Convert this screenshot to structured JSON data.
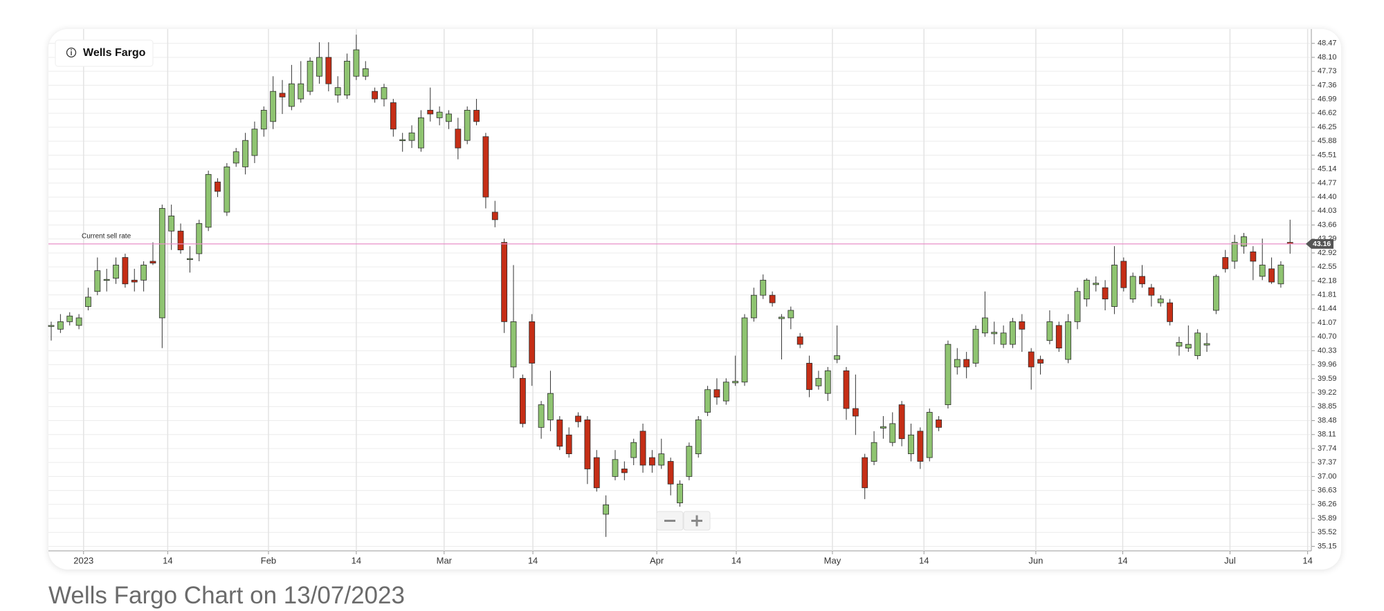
{
  "chart_data": {
    "type": "candlestick",
    "legend_label": "Wells Fargo",
    "caption": "Wells Fargo Chart on 13/07/2023",
    "annotation": "Current sell rate",
    "up_color": "#8fc471",
    "down_color": "#c52e16",
    "line_color": "#e98fc8",
    "grid": true,
    "xlim": [
      -0.3,
      136.3
    ],
    "ylim": [
      35.03,
      48.85
    ],
    "xticks": [
      {
        "value": 3.5,
        "label": "2023"
      },
      {
        "value": 12.6,
        "label": "14"
      },
      {
        "value": 23.5,
        "label": "Feb"
      },
      {
        "value": 33,
        "label": "14"
      },
      {
        "value": 42.5,
        "label": "Mar"
      },
      {
        "value": 52.1,
        "label": "14"
      },
      {
        "value": 65.5,
        "label": "Apr"
      },
      {
        "value": 74.1,
        "label": "14"
      },
      {
        "value": 84.5,
        "label": "May"
      },
      {
        "value": 94.4,
        "label": "14"
      },
      {
        "value": 106.5,
        "label": "Jun"
      },
      {
        "value": 115.9,
        "label": "14"
      },
      {
        "value": 127.5,
        "label": "Jul"
      },
      {
        "value": 135.9,
        "label": "14"
      }
    ],
    "yticks": [
      35.15,
      35.52,
      35.89,
      36.26,
      36.63,
      {
        "value": 37,
        "label": "37.00"
      },
      37.37,
      37.74,
      38.11,
      38.48,
      38.85,
      39.22,
      39.59,
      39.96,
      40.33,
      {
        "value": 40.7,
        "label": "40.70"
      },
      41.07,
      41.44,
      41.81,
      42.18,
      42.55,
      42.92,
      43.29,
      43.66,
      44.03,
      {
        "value": 44.4,
        "label": "44.40"
      },
      44.77,
      45.14,
      45.51,
      45.88,
      46.25,
      46.62,
      46.99,
      47.36,
      47.73,
      {
        "value": 48.1,
        "label": "48.10"
      },
      48.47
    ],
    "open": [
      40.98,
      40.9,
      41.1,
      41.0,
      41.5,
      41.9,
      42.2,
      42.25,
      42.8,
      42.2,
      42.2,
      42.7,
      41.2,
      43.5,
      43.5,
      42.75,
      42.9,
      43.6,
      44.8,
      44.0,
      45.3,
      45.2,
      45.5,
      46.2,
      46.4,
      47.15,
      46.8,
      47.0,
      47.2,
      47.6,
      48.1,
      47.1,
      47.1,
      47.6,
      47.6,
      47.2,
      47.0,
      46.9,
      45.9,
      45.9,
      45.7,
      46.7,
      46.5,
      46.4,
      46.2,
      45.9,
      46.7,
      46.0,
      44.0,
      43.2,
      39.9,
      39.6,
      41.1,
      38.3,
      38.5,
      38.5,
      38.1,
      38.6,
      38.5,
      37.5,
      36.0,
      37.0,
      37.2,
      37.5,
      38.2,
      37.5,
      37.3,
      37.4,
      36.3,
      37.0,
      37.6,
      38.7,
      39.3,
      39.0,
      39.48,
      39.5,
      41.2,
      41.8,
      41.8,
      41.18,
      41.2,
      40.7,
      40.0,
      39.4,
      39.2,
      40.1,
      39.8,
      38.8,
      37.5,
      37.4,
      38.28,
      37.9,
      38.9,
      37.6,
      38.2,
      37.5,
      38.5,
      38.9,
      39.9,
      40.1,
      40.0,
      40.8,
      40.78,
      40.5,
      40.5,
      41.1,
      40.3,
      40.1,
      40.6,
      41.0,
      40.1,
      41.1,
      41.7,
      42.08,
      42.0,
      41.5,
      42.7,
      41.7,
      42.3,
      42.0,
      41.6,
      41.6,
      40.45,
      40.4,
      40.2,
      40.48,
      41.4,
      42.8,
      42.7,
      43.1,
      42.95,
      42.3,
      42.5,
      42.1,
      43.2
    ],
    "high": [
      41.1,
      41.3,
      41.35,
      41.3,
      42.0,
      42.8,
      42.5,
      42.8,
      42.9,
      42.5,
      42.7,
      43.2,
      44.2,
      44.2,
      43.7,
      43.1,
      43.8,
      45.1,
      44.9,
      45.3,
      45.7,
      46.1,
      46.4,
      46.8,
      47.6,
      47.5,
      47.9,
      48.0,
      48.1,
      48.5,
      48.5,
      47.6,
      48.2,
      48.7,
      48.0,
      47.3,
      47.4,
      47.0,
      46.1,
      46.3,
      46.7,
      47.3,
      46.8,
      46.7,
      46.5,
      46.8,
      47.0,
      46.1,
      44.3,
      43.3,
      42.6,
      39.7,
      41.3,
      39.0,
      39.8,
      38.6,
      38.3,
      38.7,
      38.6,
      37.7,
      36.5,
      37.7,
      37.4,
      38.0,
      38.4,
      37.7,
      38.0,
      37.5,
      36.9,
      37.9,
      38.6,
      39.4,
      39.6,
      39.6,
      40.2,
      41.3,
      42.0,
      42.35,
      41.9,
      41.3,
      41.5,
      40.8,
      40.2,
      39.8,
      39.9,
      41.0,
      39.9,
      39.7,
      37.6,
      38.2,
      38.6,
      38.7,
      39.0,
      38.4,
      38.3,
      38.8,
      38.6,
      40.6,
      40.4,
      40.3,
      41.0,
      41.9,
      41.1,
      41.0,
      41.2,
      41.3,
      40.4,
      40.2,
      41.4,
      41.1,
      41.3,
      42.0,
      42.25,
      42.3,
      42.2,
      43.1,
      42.8,
      42.4,
      42.6,
      42.1,
      41.8,
      41.7,
      40.7,
      41.0,
      40.9,
      40.8,
      42.35,
      43.0,
      43.4,
      43.45,
      43.1,
      43.3,
      42.8,
      42.7,
      43.8
    ],
    "low": [
      40.6,
      40.8,
      41.0,
      40.9,
      41.4,
      41.8,
      41.9,
      42.1,
      42.0,
      41.9,
      41.9,
      42.6,
      40.4,
      43.0,
      42.9,
      42.4,
      42.7,
      43.5,
      44.4,
      43.9,
      45.2,
      45.0,
      45.3,
      46.0,
      46.2,
      46.6,
      46.7,
      46.9,
      47.1,
      47.4,
      47.2,
      46.9,
      47.0,
      47.5,
      47.5,
      46.9,
      46.8,
      46.0,
      45.6,
      45.7,
      45.6,
      46.4,
      46.3,
      46.2,
      45.4,
      45.8,
      46.3,
      44.1,
      43.6,
      40.8,
      39.6,
      38.3,
      39.4,
      38.0,
      38.2,
      37.7,
      37.5,
      38.3,
      36.8,
      36.6,
      35.4,
      36.9,
      36.9,
      37.3,
      37.1,
      37.1,
      37.2,
      36.5,
      36.2,
      36.9,
      37.5,
      38.6,
      38.9,
      38.9,
      39.4,
      39.4,
      41.1,
      41.7,
      41.5,
      40.1,
      40.9,
      40.4,
      39.1,
      39.3,
      39.0,
      40.0,
      38.5,
      38.1,
      36.4,
      37.3,
      38.0,
      37.8,
      37.8,
      37.4,
      37.2,
      37.4,
      38.2,
      38.8,
      39.7,
      39.6,
      39.9,
      40.7,
      40.5,
      40.4,
      40.4,
      40.3,
      39.3,
      39.7,
      40.5,
      40.3,
      40.0,
      40.9,
      41.5,
      41.9,
      41.4,
      41.3,
      41.9,
      41.6,
      42.0,
      41.5,
      41.5,
      41.0,
      40.2,
      40.3,
      40.1,
      40.3,
      41.3,
      42.4,
      42.5,
      42.9,
      42.2,
      42.2,
      42.1,
      42.0,
      42.9
    ],
    "close": [
      41.0,
      41.1,
      41.25,
      41.2,
      41.75,
      42.45,
      42.22,
      42.6,
      42.1,
      42.15,
      42.6,
      42.65,
      44.1,
      43.9,
      43.0,
      42.77,
      43.7,
      45.0,
      44.55,
      45.2,
      45.6,
      45.9,
      46.2,
      46.7,
      47.2,
      47.05,
      47.4,
      47.4,
      48.0,
      48.1,
      47.4,
      47.3,
      48.0,
      48.3,
      47.8,
      47.0,
      47.3,
      46.2,
      45.92,
      46.1,
      46.5,
      46.6,
      46.65,
      46.6,
      45.7,
      46.7,
      46.4,
      44.4,
      43.8,
      41.1,
      41.1,
      38.4,
      40.0,
      38.9,
      39.2,
      37.8,
      37.6,
      38.45,
      37.2,
      36.7,
      36.25,
      37.45,
      37.1,
      37.9,
      37.3,
      37.3,
      37.6,
      36.8,
      36.8,
      37.8,
      38.5,
      39.3,
      39.1,
      39.5,
      39.52,
      41.2,
      41.8,
      42.2,
      41.6,
      41.22,
      41.4,
      40.5,
      39.3,
      39.6,
      39.8,
      40.2,
      38.8,
      38.6,
      36.7,
      37.9,
      38.32,
      38.4,
      38.0,
      38.1,
      37.4,
      38.7,
      38.3,
      40.5,
      40.1,
      39.9,
      40.9,
      41.2,
      40.82,
      40.8,
      41.1,
      40.9,
      39.9,
      40.0,
      41.1,
      40.4,
      41.1,
      41.9,
      42.2,
      42.12,
      41.7,
      42.6,
      42.0,
      42.3,
      42.1,
      41.8,
      41.7,
      41.1,
      40.55,
      40.5,
      40.8,
      40.52,
      42.3,
      42.5,
      43.2,
      43.35,
      42.7,
      42.6,
      42.15,
      42.6,
      43.16
    ]
  }
}
